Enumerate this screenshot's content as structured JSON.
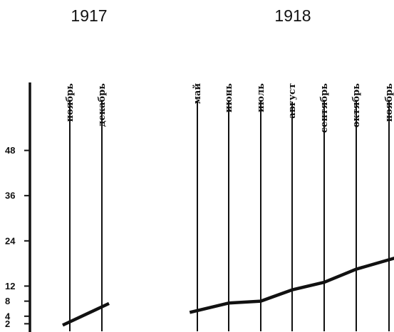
{
  "chart_data": {
    "type": "line",
    "years": [
      {
        "label": "1917",
        "key": "1917"
      },
      {
        "label": "1918",
        "key": "1918"
      }
    ],
    "months": [
      {
        "label": "ноябрь",
        "year": "1917"
      },
      {
        "label": "декабрь",
        "year": "1917"
      },
      {
        "label": "май",
        "year": "1918"
      },
      {
        "label": "июнь",
        "year": "1918"
      },
      {
        "label": "июль",
        "year": "1918"
      },
      {
        "label": "август",
        "year": "1918"
      },
      {
        "label": "сентябрь",
        "year": "1918"
      },
      {
        "label": "октябрь",
        "year": "1918"
      },
      {
        "label": "ноябрь",
        "year": "1918"
      }
    ],
    "y_ticks": [
      2,
      4,
      8,
      12,
      24,
      36,
      48
    ],
    "ylim": [
      0,
      60
    ],
    "series": [
      {
        "segments": [
          {
            "points": [
              {
                "x": "ноябрь 1917",
                "y": 2.5
              },
              {
                "x": "декабрь 1917",
                "y": 6.5
              }
            ]
          },
          {
            "points": [
              {
                "x": "май 1918",
                "y": 5.5
              },
              {
                "x": "июнь 1918",
                "y": 7.5
              },
              {
                "x": "июль 1918",
                "y": 8
              },
              {
                "x": "август 1918",
                "y": 11
              },
              {
                "x": "сентябрь 1918",
                "y": 13
              },
              {
                "x": "октябрь 1918",
                "y": 16.5
              },
              {
                "x": "ноябрь 1918",
                "y": 19
              }
            ]
          }
        ]
      }
    ]
  }
}
